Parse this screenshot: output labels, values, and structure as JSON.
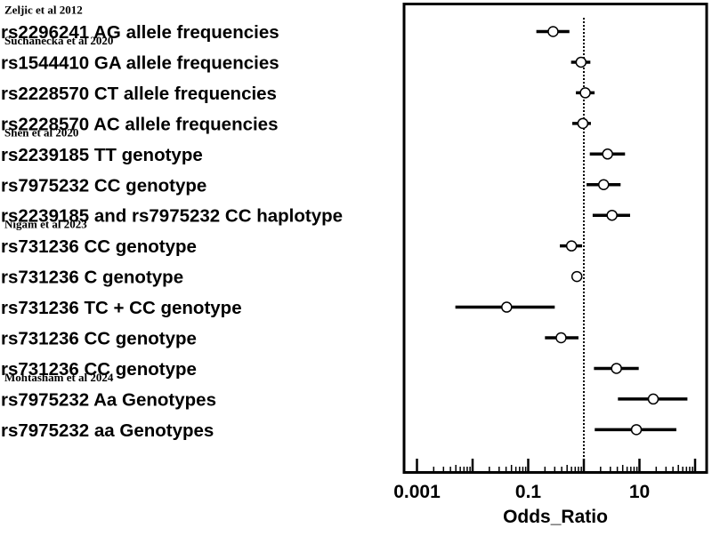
{
  "chart_data": {
    "type": "forest",
    "title": "",
    "xlabel": "Odds_Ratio",
    "ylabel": "",
    "xscale": "log10",
    "xlim": [
      0.00075,
      130
    ],
    "xticks": [
      {
        "value": 0.001,
        "label": "0.001"
      },
      {
        "value": 0.1,
        "label": "0.1"
      },
      {
        "value": 10,
        "label": "10"
      }
    ],
    "reference_line": {
      "value": 1,
      "style": "dotted"
    },
    "grid": false,
    "legend": null,
    "studies": [
      {
        "name": "Zeljic et al 2012",
        "before_row": 0
      },
      {
        "name": "Suchanecka et al 2020",
        "before_row": 1
      },
      {
        "name": "Shen et al 2020",
        "before_row": 4
      },
      {
        "name": "Nigam et al 2023",
        "before_row": 7
      },
      {
        "name": "Mohtasham et al 2024",
        "before_row": 12
      }
    ],
    "rows": [
      {
        "label": "rs2296241 AG allele frequencies",
        "or": 0.28,
        "ci_low": 0.14,
        "ci_high": 0.55
      },
      {
        "label": "rs1544410 GA allele frequencies",
        "or": 0.89,
        "ci_low": 0.59,
        "ci_high": 1.31
      },
      {
        "label": "rs2228570 CT allele frequencies",
        "or": 1.06,
        "ci_low": 0.72,
        "ci_high": 1.56
      },
      {
        "label": "rs2228570 AC allele frequencies",
        "or": 0.96,
        "ci_low": 0.62,
        "ci_high": 1.34
      },
      {
        "label": "rs2239185 TT genotype",
        "or": 2.67,
        "ci_low": 1.28,
        "ci_high": 5.5
      },
      {
        "label": "rs7975232 CC genotype",
        "or": 2.27,
        "ci_low": 1.12,
        "ci_high": 4.58
      },
      {
        "label": "rs2239185 and rs7975232 CC haplotype",
        "or": 3.21,
        "ci_low": 1.44,
        "ci_high": 6.79
      },
      {
        "label": "rs731236 CC genotype",
        "or": 0.6,
        "ci_low": 0.37,
        "ci_high": 0.93
      },
      {
        "label": "rs731236 C genotype",
        "or": 0.75,
        "ci_low": 0.67,
        "ci_high": 0.86
      },
      {
        "label": "rs731236 TC + CC genotype",
        "or": 0.041,
        "ci_low": 0.0049,
        "ci_high": 0.3
      },
      {
        "label": "rs731236 CC genotype",
        "or": 0.39,
        "ci_low": 0.2,
        "ci_high": 0.8
      },
      {
        "label": "rs731236 CC genotype",
        "or": 3.86,
        "ci_low": 1.52,
        "ci_high": 9.7
      },
      {
        "label": "rs7975232 Aa Genotypes",
        "or": 17.7,
        "ci_low": 4.1,
        "ci_high": 72.8
      },
      {
        "label": "rs7975232 aa Genotypes",
        "or": 8.8,
        "ci_low": 1.57,
        "ci_high": 46
      }
    ]
  },
  "colors": {
    "ink": "#000000",
    "background": "#ffffff",
    "marker_fill": "#ffffff"
  }
}
